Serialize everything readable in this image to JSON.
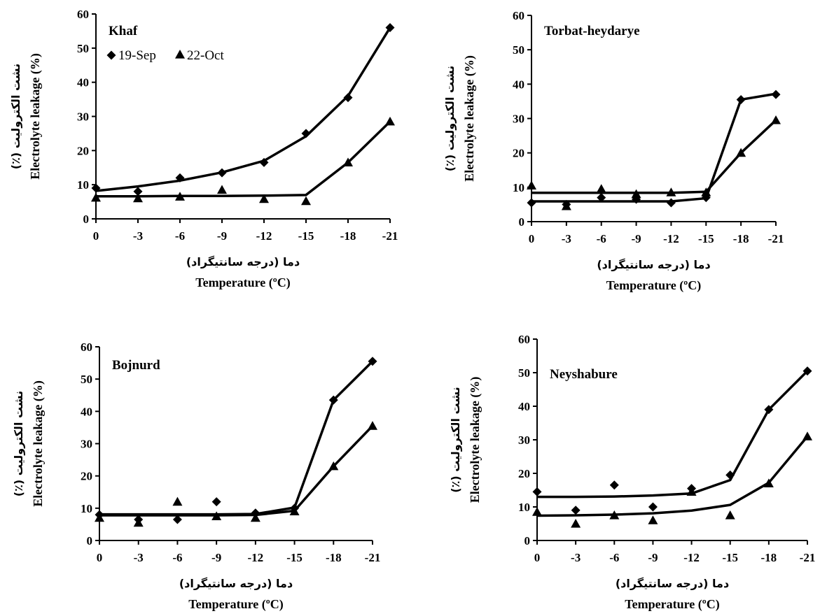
{
  "chart_data": [
    {
      "type": "scatter",
      "title": "Khaf",
      "categories": [
        "0",
        "-3",
        "-6",
        "-9",
        "-12",
        "-15",
        "-18",
        "-21"
      ],
      "xlabel_fa": "دما (درجه سانتیگراد)",
      "xlabel_en": "Temperature (ºC)",
      "ylabel_fa": "نشت الکترولیت (٪)",
      "ylabel_en": "Electrolyte leakage (%)",
      "ylim": [
        0,
        60
      ],
      "yticks": [
        0,
        10,
        20,
        30,
        40,
        50,
        60
      ],
      "legend": {
        "position": "top-left",
        "entries": [
          "19-Sep",
          "22-Oct"
        ]
      },
      "series": [
        {
          "name": "19-Sep",
          "marker": "diamond",
          "values": [
            9,
            8,
            12,
            13.5,
            16.5,
            25,
            35.5,
            56
          ],
          "fit": [
            8.2,
            9.5,
            11.2,
            13.6,
            17,
            24.2,
            36,
            56
          ]
        },
        {
          "name": "22-Oct",
          "marker": "triangle",
          "values": [
            6.2,
            6,
            6.5,
            8.5,
            5.8,
            5.2,
            16.5,
            28.5
          ],
          "fit": [
            6.6,
            6.6,
            6.7,
            6.7,
            6.8,
            7,
            16.5,
            28.5
          ]
        }
      ]
    },
    {
      "type": "scatter",
      "title": "Torbat-heydarye",
      "categories": [
        "0",
        "-3",
        "-6",
        "-9",
        "-12",
        "-15",
        "-18",
        "-21"
      ],
      "xlabel_fa": "دما (درجه سانتیگراد)",
      "xlabel_en": "Temperature (ºC)",
      "ylabel_fa": "نشت الکترولیت (٪)",
      "ylabel_en": "Electrolyte leakage (%)",
      "ylim": [
        0,
        60
      ],
      "yticks": [
        0,
        10,
        20,
        30,
        40,
        50,
        60
      ],
      "series": [
        {
          "name": "19-Sep",
          "marker": "diamond",
          "values": [
            5.5,
            5,
            7,
            6.5,
            5.5,
            7,
            35.5,
            37
          ],
          "fit": [
            5.9,
            5.9,
            5.9,
            5.9,
            5.9,
            6.8,
            35.5,
            37.2
          ]
        },
        {
          "name": "22-Oct",
          "marker": "triangle",
          "values": [
            10.5,
            4.5,
            9.5,
            8,
            8.5,
            8.5,
            20,
            29.5
          ],
          "fit": [
            8.4,
            8.4,
            8.4,
            8.4,
            8.4,
            8.7,
            20,
            29.5
          ]
        }
      ]
    },
    {
      "type": "scatter",
      "title": "Bojnurd",
      "categories": [
        "0",
        "-3",
        "-6",
        "-9",
        "-12",
        "-15",
        "-18",
        "-21"
      ],
      "xlabel_fa": "دما (درجه سانتیگراد)",
      "xlabel_en": "Temperature (ºC)",
      "ylabel_fa": "نشت الکترولیت (٪)",
      "ylabel_en": "Electrolyte leakage (%)",
      "ylim": [
        0,
        60
      ],
      "yticks": [
        0,
        10,
        20,
        30,
        40,
        50,
        60
      ],
      "series": [
        {
          "name": "19-Sep",
          "marker": "diamond",
          "values": [
            8,
            6.5,
            6.5,
            12,
            8.5,
            10,
            43.5,
            55.5
          ],
          "fit": [
            8.1,
            8.1,
            8.1,
            8.1,
            8.2,
            10.2,
            43.5,
            55.5
          ]
        },
        {
          "name": "22-Oct",
          "marker": "triangle",
          "values": [
            7,
            5.5,
            12,
            7.5,
            7,
            9,
            23,
            35.5
          ],
          "fit": [
            7.8,
            7.8,
            7.8,
            7.8,
            7.9,
            9.2,
            23,
            35.5
          ]
        }
      ]
    },
    {
      "type": "scatter",
      "title": "Neyshabure",
      "categories": [
        "0",
        "-3",
        "-6",
        "-9",
        "-12",
        "-15",
        "-18",
        "-21"
      ],
      "xlabel_fa": "دما (درجه سانتیگراد)",
      "xlabel_en": "Temperature (ºC)",
      "ylabel_fa": "نشت الکترولیت (٪)",
      "ylabel_en": "Electrolyte leakage (%)",
      "ylim": [
        0,
        60
      ],
      "yticks": [
        0,
        10,
        20,
        30,
        40,
        50,
        60
      ],
      "series": [
        {
          "name": "19-Sep",
          "marker": "diamond",
          "values": [
            14.5,
            9,
            16.5,
            10,
            15.5,
            19.5,
            39,
            50.5
          ],
          "fit": [
            13,
            13,
            13.1,
            13.4,
            14,
            18,
            39,
            50.5
          ]
        },
        {
          "name": "22-Oct",
          "marker": "triangle",
          "values": [
            8.5,
            5,
            7.5,
            6,
            14.5,
            7.5,
            17,
            31
          ],
          "fit": [
            7.4,
            7.5,
            7.7,
            8.1,
            8.9,
            10.6,
            17.2,
            31
          ]
        }
      ]
    }
  ]
}
